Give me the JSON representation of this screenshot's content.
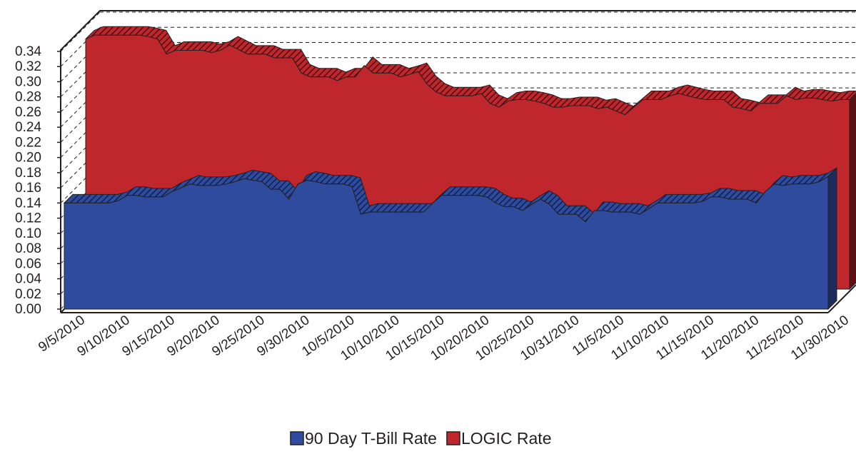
{
  "chart_data": {
    "type": "area3d",
    "categories": [
      "9/5/2010",
      null,
      null,
      null,
      null,
      "9/10/2010",
      null,
      null,
      null,
      null,
      "9/15/2010",
      null,
      null,
      null,
      null,
      "9/20/2010",
      null,
      null,
      null,
      null,
      "9/25/2010",
      null,
      null,
      null,
      null,
      "9/30/2010",
      null,
      null,
      null,
      null,
      "10/5/2010",
      null,
      null,
      null,
      null,
      "10/10/2010",
      null,
      null,
      null,
      null,
      "10/15/2010",
      null,
      null,
      null,
      null,
      "10/20/2010",
      null,
      null,
      null,
      null,
      "10/25/2010",
      null,
      null,
      null,
      null,
      "10/31/2010",
      null,
      null,
      null,
      null,
      "11/5/2010",
      null,
      null,
      null,
      null,
      "11/10/2010",
      null,
      null,
      null,
      null,
      "11/15/2010",
      null,
      null,
      null,
      null,
      "11/20/2010",
      null,
      null,
      null,
      null,
      "11/25/2010",
      null,
      null,
      null,
      null,
      "11/30/2010"
    ],
    "series": [
      {
        "name": "90 Day T-Bill Rate",
        "color": "#2e4b9e",
        "values": [
          0.14,
          0.14,
          0.14,
          0.14,
          0.14,
          0.14,
          0.143,
          0.15,
          0.15,
          0.148,
          0.148,
          0.148,
          0.155,
          0.16,
          0.165,
          0.163,
          0.163,
          0.163,
          0.165,
          0.168,
          0.172,
          0.17,
          0.168,
          0.158,
          0.158,
          0.145,
          0.165,
          0.17,
          0.168,
          0.165,
          0.165,
          0.165,
          0.162,
          0.125,
          0.128,
          0.128,
          0.128,
          0.128,
          0.128,
          0.128,
          0.128,
          0.14,
          0.15,
          0.15,
          0.15,
          0.15,
          0.15,
          0.148,
          0.14,
          0.135,
          0.135,
          0.13,
          0.138,
          0.145,
          0.138,
          0.125,
          0.125,
          0.125,
          0.115,
          0.13,
          0.13,
          0.128,
          0.128,
          0.128,
          0.125,
          0.132,
          0.14,
          0.14,
          0.14,
          0.14,
          0.14,
          0.142,
          0.148,
          0.148,
          0.145,
          0.145,
          0.145,
          0.14,
          0.155,
          0.165,
          0.163,
          0.165,
          0.165,
          0.165,
          0.168,
          0.175
        ]
      },
      {
        "name": "LOGIC Rate",
        "color": "#c0272d",
        "values": [
          0.33,
          0.335,
          0.335,
          0.335,
          0.335,
          0.335,
          0.335,
          0.333,
          0.33,
          0.31,
          0.315,
          0.315,
          0.315,
          0.315,
          0.312,
          0.315,
          0.322,
          0.316,
          0.31,
          0.31,
          0.31,
          0.305,
          0.305,
          0.305,
          0.285,
          0.28,
          0.28,
          0.28,
          0.275,
          0.28,
          0.28,
          0.295,
          0.285,
          0.285,
          0.285,
          0.28,
          0.283,
          0.287,
          0.27,
          0.26,
          0.255,
          0.255,
          0.255,
          0.255,
          0.258,
          0.245,
          0.24,
          0.248,
          0.25,
          0.25,
          0.248,
          0.245,
          0.24,
          0.24,
          0.242,
          0.242,
          0.242,
          0.238,
          0.24,
          0.235,
          0.23,
          0.24,
          0.25,
          0.25,
          0.25,
          0.255,
          0.258,
          0.255,
          0.252,
          0.25,
          0.25,
          0.25,
          0.24,
          0.238,
          0.235,
          0.245,
          0.245,
          0.245,
          0.255,
          0.25,
          0.252,
          0.252,
          0.25,
          0.248,
          0.25,
          0.25
        ]
      }
    ],
    "ylim": [
      0,
      0.34
    ],
    "yticks": [
      {
        "value": 0,
        "label": "0.00"
      },
      {
        "value": 0.02,
        "label": "0.02"
      },
      {
        "value": 0.04,
        "label": "0.04"
      },
      {
        "value": 0.06,
        "label": "0.06"
      },
      {
        "value": 0.08,
        "label": "0.08"
      },
      {
        "value": 0.1,
        "label": "0.10"
      },
      {
        "value": 0.12,
        "label": "0.12"
      },
      {
        "value": 0.14,
        "label": "0.14"
      },
      {
        "value": 0.16,
        "label": "0.16"
      },
      {
        "value": 0.18,
        "label": "0.18"
      },
      {
        "value": 0.2,
        "label": "0.20"
      },
      {
        "value": 0.22,
        "label": "0.22"
      },
      {
        "value": 0.24,
        "label": "0.24"
      },
      {
        "value": 0.26,
        "label": "0.26"
      },
      {
        "value": 0.28,
        "label": "0.28"
      },
      {
        "value": 0.3,
        "label": "0.30"
      },
      {
        "value": 0.32,
        "label": "0.32"
      },
      {
        "value": 0.34,
        "label": "0.34"
      }
    ],
    "grid": true
  }
}
